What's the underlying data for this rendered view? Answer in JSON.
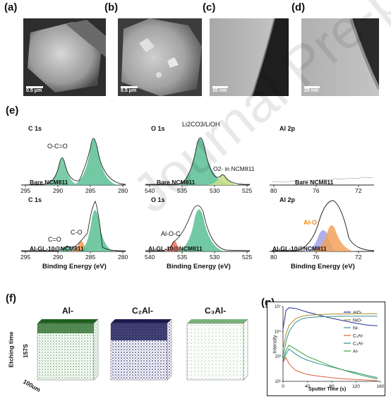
{
  "panels": {
    "a": "(a)",
    "b": "(b)",
    "c": "(c)",
    "d": "(d)",
    "e": "(e)",
    "f": "(f)",
    "g": "(g)"
  },
  "sem": {
    "a_scale": "0.5 μm",
    "b_scale": "0.5 μm",
    "c_scale": "20 nm",
    "d_scale": "20 nm"
  },
  "xps": {
    "c1s_top": {
      "element": "C 1s",
      "sample": "Bare NCM811",
      "peaks": [
        "O-C=O"
      ],
      "xticks": [
        "295",
        "290",
        "285",
        "280"
      ]
    },
    "o1s_top": {
      "element": "O 1s",
      "sample": "Bare NCM811",
      "peaks": [
        "Li2CO3/LiOH",
        "O2- in NCM811"
      ],
      "xticks": [
        "540",
        "535",
        "530",
        "525"
      ]
    },
    "al2p_top": {
      "element": "Al 2p",
      "sample": "Bare NCM811",
      "xticks": [
        "80",
        "76",
        "72"
      ]
    },
    "c1s_bot": {
      "element": "C 1s",
      "sample": "Al-GL-10@NCM811",
      "peaks": [
        "C=O",
        "C-O"
      ],
      "xticks": [
        "295",
        "290",
        "285",
        "280"
      ],
      "xlabel": "Binding Energy (eV)"
    },
    "o1s_bot": {
      "element": "O 1s",
      "sample": "Al-GL-10@NCM811",
      "peaks": [
        "Al-O-C"
      ],
      "xticks": [
        "540",
        "535",
        "530",
        "525"
      ],
      "xlabel": "Binding Energy (eV)"
    },
    "al2p_bot": {
      "element": "Al 2p",
      "sample": "Al-GL-10@NCM811",
      "peaks": [
        "Al-O"
      ],
      "xticks": [
        "80",
        "76",
        "72"
      ],
      "xlabel": "Binding Energy (eV)"
    },
    "colors": {
      "green": "#5bbf93",
      "orange": "#f2a25a",
      "red": "#ee7766",
      "blue": "#a9a6e8",
      "lime": "#c6e08a"
    }
  },
  "tof": {
    "labels": [
      "Al-",
      "C₂Al-",
      "C₃Al-"
    ],
    "etch_time": "Etching time",
    "etch_value": "157S",
    "size": "100um"
  },
  "chart_data": {
    "type": "line",
    "title": "",
    "xlabel": "Sputter Time (s)",
    "ylabel": "Intensity",
    "xlim": [
      0,
      160
    ],
    "xticks": [
      "0",
      "40",
      "80",
      "120",
      "160"
    ],
    "ylog": true,
    "yticks": [
      "10¹",
      "10³",
      "10⁵",
      "10⁷"
    ],
    "series": [
      {
        "name": "AlO-",
        "color": "#1f2f8f",
        "x": [
          0,
          5,
          10,
          20,
          30,
          40,
          60,
          80,
          100,
          120,
          140,
          155
        ],
        "y": [
          5.2,
          6.7,
          6.9,
          6.85,
          6.7,
          6.55,
          6.3,
          6.05,
          5.85,
          5.65,
          5.5,
          5.45
        ]
      },
      {
        "name": "NiO-",
        "color": "#a88e2a",
        "x": [
          0,
          5,
          10,
          20,
          30,
          40,
          60,
          80,
          100,
          120,
          140,
          155
        ],
        "y": [
          3.6,
          4.8,
          5.5,
          6.0,
          6.2,
          6.3,
          6.35,
          6.4,
          6.4,
          6.42,
          6.42,
          6.42
        ]
      },
      {
        "name": "Ni-",
        "color": "#3a8f8f",
        "x": [
          0,
          5,
          10,
          20,
          30,
          40,
          60,
          80,
          100,
          120,
          140,
          155
        ],
        "y": [
          3.0,
          4.2,
          5.0,
          5.7,
          6.0,
          6.1,
          6.18,
          6.2,
          6.22,
          6.22,
          6.22,
          6.22
        ]
      },
      {
        "name": "C₂Al-",
        "color": "#e0603a",
        "x": [
          0,
          5,
          10,
          20,
          30,
          40,
          60,
          80,
          100,
          120,
          140,
          155
        ],
        "y": [
          2.5,
          2.9,
          2.4,
          1.9,
          1.7,
          1.55,
          1.4,
          1.3,
          1.2,
          1.15,
          1.1,
          1.05
        ]
      },
      {
        "name": "C₃Al-",
        "color": "#2a8f8f",
        "x": [
          0,
          5,
          10,
          20,
          30,
          40,
          60,
          80,
          100,
          120,
          140,
          155
        ],
        "y": [
          2.6,
          3.2,
          3.6,
          3.2,
          2.9,
          2.7,
          2.4,
          2.15,
          1.9,
          1.7,
          1.45,
          1.3
        ]
      },
      {
        "name": "Al-",
        "color": "#3aa03a",
        "x": [
          0,
          5,
          10,
          20,
          30,
          40,
          60,
          80,
          100,
          120,
          140,
          155
        ],
        "y": [
          2.7,
          3.5,
          3.9,
          3.6,
          3.3,
          3.0,
          2.6,
          2.2,
          1.9,
          1.6,
          1.35,
          1.2
        ]
      }
    ]
  }
}
